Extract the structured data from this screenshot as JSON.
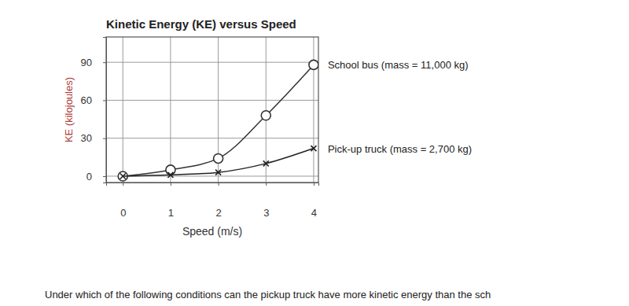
{
  "chart_data": {
    "type": "line",
    "title": "Kinetic Energy (KE) versus Speed",
    "x_label": "Speed (m/s)",
    "y_label": "KE (kilojoules)",
    "x": [
      0,
      1,
      2,
      3,
      4
    ],
    "series": [
      {
        "name": "School bus (mass = 11,000 kg)",
        "color": "#333333",
        "marker": "circle",
        "values": [
          0,
          5,
          14,
          48,
          88
        ]
      },
      {
        "name": "Pick-up truck (mass = 2,700 kg)",
        "color": "#222222",
        "marker": "x",
        "values": [
          0,
          1,
          3,
          10,
          22
        ]
      }
    ],
    "xlim": [
      -0.35,
      4.1
    ],
    "ylim": [
      -5,
      110
    ],
    "xticks": [
      0,
      1,
      2,
      3,
      4
    ],
    "yticks": [
      0,
      30,
      60,
      90
    ],
    "grid": true,
    "annotations": [
      "Under which of the following conditions can the pickup truck have more kinetic energy than the sch"
    ]
  }
}
